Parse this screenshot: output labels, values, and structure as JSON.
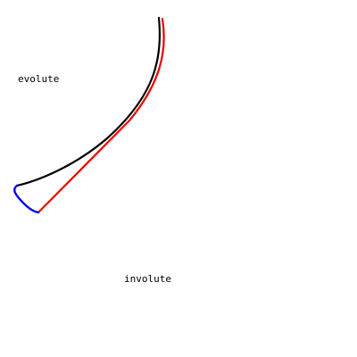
{
  "labels": {
    "evolute": "evolute",
    "involute": "involute"
  },
  "colors": {
    "background": "#ffffff",
    "evolute_curve": "#000000",
    "involute_curve": "#ee0000",
    "connector_arc": "#0000ee",
    "text": "#000000"
  }
}
